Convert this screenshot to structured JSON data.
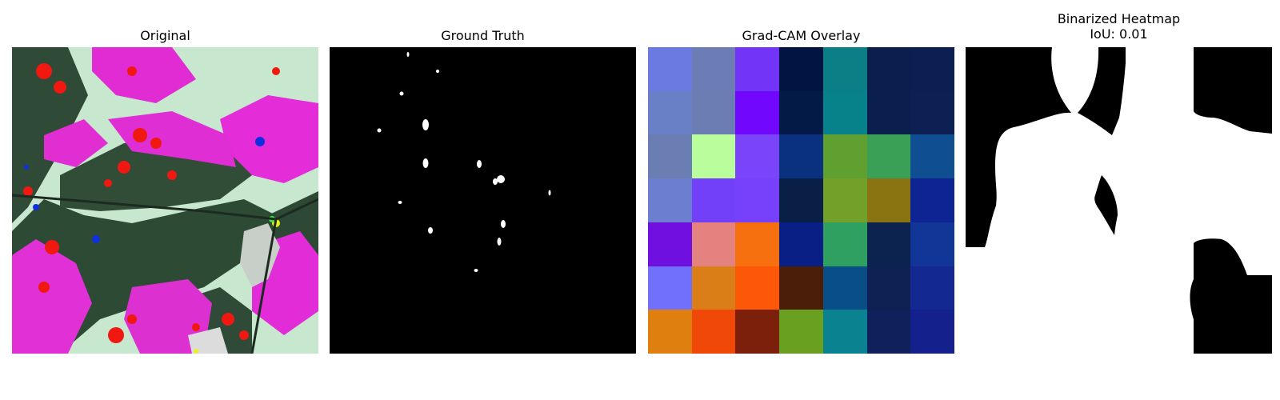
{
  "panels": {
    "original": {
      "title": "Original"
    },
    "ground_truth": {
      "title": "Ground Truth"
    },
    "gradcam": {
      "title": "Grad-CAM Overlay",
      "cells": [
        [
          "#6a7ae0",
          "#6b7db4",
          "#7234f6",
          "#021441",
          "#0a8086",
          "#0b1e4e",
          "#0c1f53"
        ],
        [
          "#6a80c6",
          "#6c7db4",
          "#7207fd",
          "#031a47",
          "#08828a",
          "#0b1f4f",
          "#0d2053"
        ],
        [
          "#6a7eb4",
          "#b9fd9c",
          "#7a44fb",
          "#0a3080",
          "#60a030",
          "#3aa055",
          "#0f4e90"
        ],
        [
          "#6b7ed0",
          "#7240f8",
          "#7740fb",
          "#0a1f45",
          "#72a028",
          "#8a7412",
          "#0f2493"
        ],
        [
          "#7010e0",
          "#e48280",
          "#f77010",
          "#0a1f86",
          "#30a060",
          "#0c2350",
          "#123698"
        ],
        [
          "#7070fc",
          "#da7f18",
          "#fd5808",
          "#4a1e08",
          "#0a4e88",
          "#0f2053",
          "#142892"
        ],
        [
          "#de7f10",
          "#f04808",
          "#7c200c",
          "#6aa020",
          "#0a8290",
          "#10205a",
          "#14208c"
        ]
      ]
    },
    "binarized": {
      "title_line1": "Binarized Heatmap",
      "title_line2": "IoU: 0.01"
    }
  }
}
